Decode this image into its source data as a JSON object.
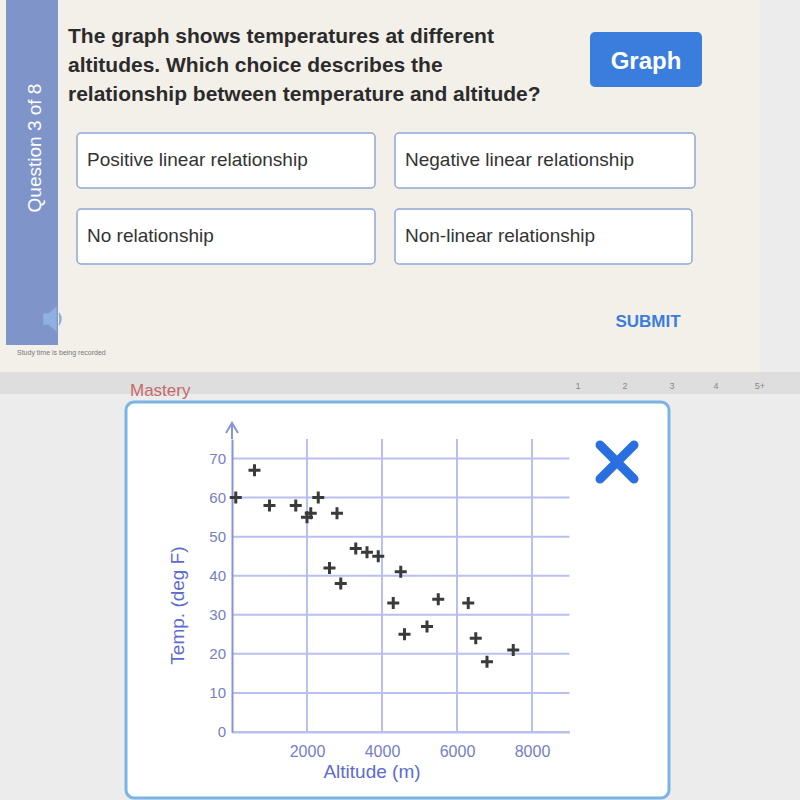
{
  "quiz": {
    "question_label": "Question 3 of 8",
    "question_lines": [
      "The graph shows temperatures at different",
      "altitudes. Which choice describes the",
      "relationship between temperature and altitude?"
    ],
    "graph_button": "Graph",
    "options": [
      "Positive linear relationship",
      "Negative linear relationship",
      "No relationship",
      "Non-linear relationship"
    ],
    "submit": "SUBMIT",
    "status": "Study time is being recorded",
    "mastery": "Mastery",
    "steps": [
      "1",
      "2",
      "3",
      "4",
      "5+"
    ]
  },
  "chart_data": {
    "type": "scatter",
    "x_label": "Altitude (m)",
    "y_label": "Temp. (deg F)",
    "x": [
      100,
      600,
      1000,
      1700,
      2000,
      2100,
      2300,
      2800,
      2600,
      2900,
      3300,
      3600,
      3900,
      4500,
      4300,
      4600,
      5200,
      5500,
      6300,
      6500,
      6800,
      7500
    ],
    "values": [
      60,
      67,
      58,
      58,
      55,
      56,
      60,
      56,
      42,
      38,
      47,
      46,
      45,
      41,
      33,
      25,
      27,
      34,
      33,
      24,
      18,
      21
    ],
    "xlim": [
      0,
      9000
    ],
    "ylim": [
      0,
      75
    ],
    "xticks": [
      2000,
      4000,
      6000,
      8000
    ],
    "yticks": [
      0,
      10,
      20,
      30,
      40,
      50,
      60,
      70
    ],
    "grid": true,
    "color": "#3a3a3a",
    "marker": "plus"
  }
}
